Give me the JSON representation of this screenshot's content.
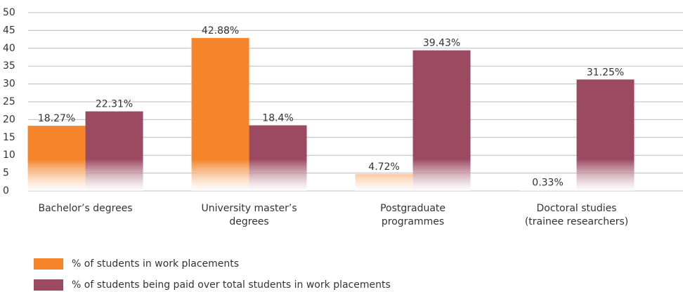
{
  "chart_data": {
    "type": "bar",
    "categories": [
      "Bachelor’s degrees",
      "University master’s degrees",
      "Postgraduate programmes",
      "Doctoral studies (trainee researchers)"
    ],
    "series": [
      {
        "name": "% of students in work placements",
        "color": "#f5842a",
        "values": [
          18.27,
          42.88,
          4.72,
          0.33
        ],
        "value_labels": [
          "18.27%",
          "42.88%",
          "4.72%",
          "0.33%"
        ]
      },
      {
        "name": "% of students being paid over total students in work placements",
        "color": "#9b4a62",
        "values": [
          22.31,
          18.4,
          39.43,
          31.25
        ],
        "value_labels": [
          "22.31%",
          "18.4%",
          "39.43%",
          "31.25%"
        ]
      }
    ],
    "ylim": [
      0,
      50
    ],
    "yticks": [
      0,
      5,
      10,
      15,
      20,
      25,
      30,
      35,
      40,
      45,
      50
    ],
    "grid": true
  }
}
